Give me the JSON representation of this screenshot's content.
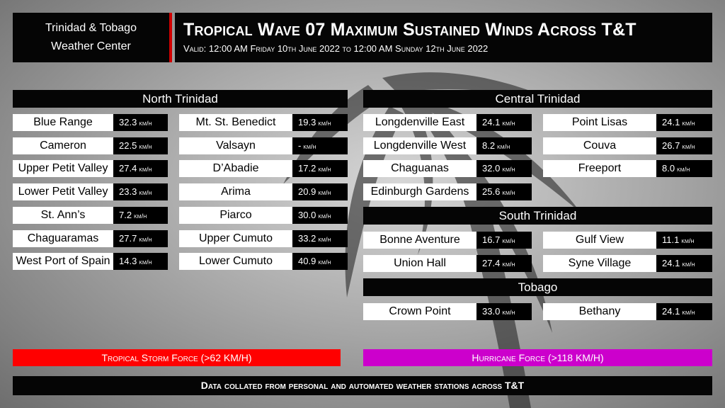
{
  "header": {
    "brand_line1": "Trinidad & Tobago",
    "brand_line2": "Weather Center",
    "title": "Tropical Wave 07 Maximum Sustained Winds Across T&T",
    "subtitle": "Valid: 12:00 AM Friday 10th June 2022 to 12:00 AM Sunday 12th June 2022"
  },
  "unit": "km/h",
  "regions": {
    "north": {
      "title": "North Trinidad",
      "col1": [
        {
          "name": "Blue Range",
          "value": "32.3"
        },
        {
          "name": "Cameron",
          "value": "22.5"
        },
        {
          "name": "Upper Petit Valley",
          "value": "27.4"
        },
        {
          "name": "Lower Petit Valley",
          "value": "23.3"
        },
        {
          "name": "St. Ann’s",
          "value": "7.2"
        },
        {
          "name": "Chaguaramas",
          "value": "27.7"
        },
        {
          "name": "West Port of Spain",
          "value": "14.3"
        }
      ],
      "col2": [
        {
          "name": "Mt. St. Benedict",
          "value": "19.3"
        },
        {
          "name": "Valsayn",
          "value": "-"
        },
        {
          "name": "D’Abadie",
          "value": "17.2"
        },
        {
          "name": "Arima",
          "value": "20.9"
        },
        {
          "name": "Piarco",
          "value": "30.0"
        },
        {
          "name": "Upper Cumuto",
          "value": "33.2"
        },
        {
          "name": "Lower Cumuto",
          "value": "40.9"
        }
      ]
    },
    "central": {
      "title": "Central Trinidad",
      "col1": [
        {
          "name": "Longdenville East",
          "value": "24.1"
        },
        {
          "name": "Longdenville West",
          "value": "8.2"
        },
        {
          "name": "Chaguanas",
          "value": "32.0"
        },
        {
          "name": "Edinburgh Gardens",
          "value": "25.6"
        }
      ],
      "col2": [
        {
          "name": "Point Lisas",
          "value": "24.1"
        },
        {
          "name": "Couva",
          "value": "26.7"
        },
        {
          "name": "Freeport",
          "value": "8.0"
        }
      ]
    },
    "south": {
      "title": "South Trinidad",
      "col1": [
        {
          "name": "Bonne Aventure",
          "value": "16.7"
        },
        {
          "name": "Union Hall",
          "value": "27.4"
        }
      ],
      "col2": [
        {
          "name": "Gulf View",
          "value": "11.1"
        },
        {
          "name": "Syne Village",
          "value": "24.1"
        }
      ]
    },
    "tobago": {
      "title": "Tobago",
      "col1": [
        {
          "name": "Crown Point",
          "value": "33.0"
        }
      ],
      "col2": [
        {
          "name": "Bethany",
          "value": "24.1"
        }
      ]
    }
  },
  "legend": {
    "tropical_storm": {
      "label": "Tropical Storm Force (>62 KM/H)",
      "color": "#ff0000"
    },
    "hurricane": {
      "label": "Hurricane Force (>118 KM/H)",
      "color": "#cc00cc"
    }
  },
  "footer": "Data collated from personal and automated weather stations across T&T"
}
